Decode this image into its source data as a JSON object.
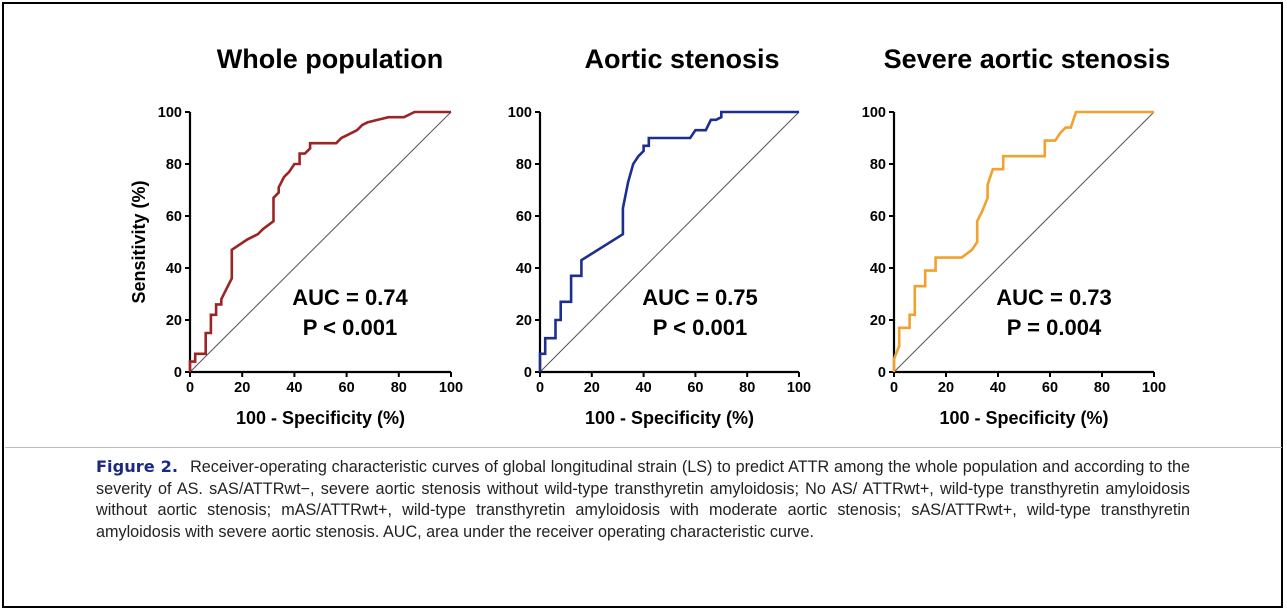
{
  "figure": {
    "label": "Figure 2.",
    "caption": "Receiver-operating characteristic curves of global longitudinal strain (LS) to predict ATTR among the whole population and according to the severity of AS. sAS/ATTRwt−, severe aortic stenosis without wild-type transthyretin amyloidosis; No AS/ ATTRwt+, wild-type transthyretin amyloidosis without aortic stenosis; mAS/ATTRwt+, wild-type transthyretin amyloidosis with moderate aortic stenosis; sAS/ATTRwt+, wild-type transthyretin amyloidosis with severe aortic stenosis. AUC, area under the receiver operating characteristic curve."
  },
  "chart_data": [
    {
      "type": "line",
      "title": "Whole population",
      "xlabel": "100 - Specificity (%)",
      "ylabel": "Sensitivity (%)",
      "xlim": [
        0,
        100
      ],
      "ylim": [
        0,
        100
      ],
      "xticks": [
        0,
        20,
        40,
        60,
        80,
        100
      ],
      "yticks": [
        0,
        20,
        40,
        60,
        80,
        100
      ],
      "grid": false,
      "reference_line": [
        [
          0,
          0
        ],
        [
          100,
          100
        ]
      ],
      "annotation": [
        "AUC = 0.74",
        "P < 0.001"
      ],
      "series": [
        {
          "color": "#9b2424",
          "x": [
            0,
            0,
            2,
            2,
            6,
            6,
            8,
            8,
            10,
            10,
            12,
            12,
            14,
            16,
            16,
            22,
            26,
            28,
            32,
            32,
            34,
            34,
            36,
            38,
            40,
            42,
            42,
            44,
            46,
            46,
            56,
            58,
            60,
            62,
            64,
            66,
            68,
            72,
            76,
            82,
            86,
            88,
            100
          ],
          "y": [
            0,
            4,
            4,
            7,
            7,
            15,
            15,
            22,
            22,
            26,
            26,
            28,
            32,
            36,
            47,
            51,
            53,
            55,
            58,
            67,
            69,
            71,
            75,
            77,
            80,
            80,
            84,
            84,
            86,
            88,
            88,
            90,
            91,
            92,
            93,
            95,
            96,
            97,
            98,
            98,
            100,
            100,
            100
          ]
        }
      ]
    },
    {
      "type": "line",
      "title": "Aortic stenosis",
      "xlabel": "100 - Specificity (%)",
      "ylabel": "",
      "xlim": [
        0,
        100
      ],
      "ylim": [
        0,
        100
      ],
      "xticks": [
        0,
        20,
        40,
        60,
        80,
        100
      ],
      "yticks": [
        0,
        20,
        40,
        60,
        80,
        100
      ],
      "grid": false,
      "reference_line": [
        [
          0,
          0
        ],
        [
          100,
          100
        ]
      ],
      "annotation": [
        "AUC = 0.75",
        "P < 0.001"
      ],
      "series": [
        {
          "color": "#1c2f8e",
          "x": [
            0,
            0,
            2,
            2,
            6,
            6,
            8,
            8,
            12,
            12,
            16,
            16,
            32,
            32,
            34,
            36,
            38,
            40,
            40,
            42,
            42,
            58,
            60,
            64,
            66,
            68,
            70,
            70,
            100
          ],
          "y": [
            0,
            7,
            7,
            13,
            13,
            20,
            20,
            27,
            27,
            37,
            37,
            43,
            53,
            63,
            73,
            80,
            83,
            85,
            87,
            87,
            90,
            90,
            93,
            93,
            97,
            97,
            98,
            100,
            100
          ]
        }
      ]
    },
    {
      "type": "line",
      "title": "Severe aortic stenosis",
      "xlabel": "100 - Specificity (%)",
      "ylabel": "",
      "xlim": [
        0,
        100
      ],
      "ylim": [
        0,
        100
      ],
      "xticks": [
        0,
        20,
        40,
        60,
        80,
        100
      ],
      "yticks": [
        0,
        20,
        40,
        60,
        80,
        100
      ],
      "grid": false,
      "reference_line": [
        [
          0,
          0
        ],
        [
          100,
          100
        ]
      ],
      "annotation": [
        "AUC = 0.73",
        "P = 0.004"
      ],
      "series": [
        {
          "color": "#f0a12e",
          "x": [
            0,
            0,
            2,
            2,
            6,
            6,
            8,
            8,
            12,
            12,
            16,
            16,
            26,
            30,
            32,
            32,
            34,
            36,
            36,
            38,
            42,
            42,
            58,
            58,
            62,
            64,
            66,
            68,
            70,
            100
          ],
          "y": [
            0,
            5,
            10,
            17,
            17,
            22,
            22,
            33,
            33,
            39,
            39,
            44,
            44,
            47,
            50,
            58,
            62,
            67,
            72,
            78,
            78,
            83,
            83,
            89,
            89,
            92,
            94,
            94,
            100,
            100
          ]
        }
      ]
    }
  ]
}
